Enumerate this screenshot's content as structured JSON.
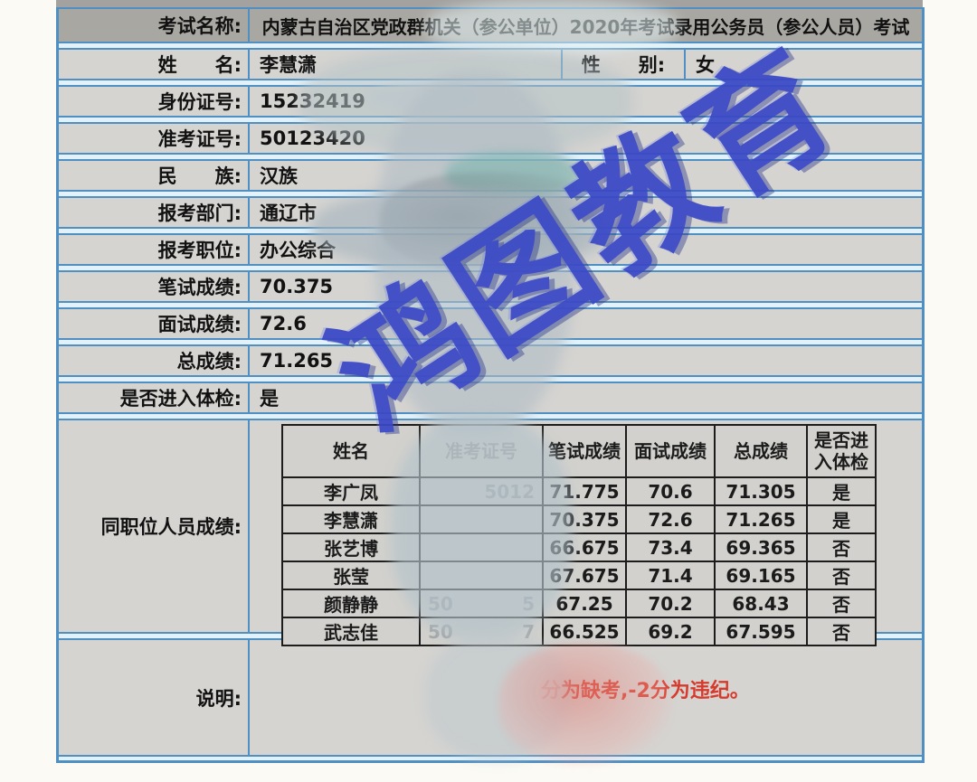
{
  "watermark": {
    "text": "鸿图教育",
    "color": "#3a48c6"
  },
  "colors": {
    "row_border_blue": "#4f8fc1",
    "cell_gray": "#d5d4d1",
    "header_gray": "#a9a7a2",
    "note_red": "#d63a2c",
    "watermark_blue": "#3a48c6"
  },
  "form": {
    "exam_name_label": "考试名称:",
    "exam_name": "内蒙古自治区党政群机关（参公单位）2020年考试录用公务员（参公人员）考试",
    "name_label": "姓　　名:",
    "name": "李慧潇",
    "gender_label": "性　　别:",
    "gender": "女",
    "id_label": "身份证号:",
    "id_value": "15232419",
    "ticket_label": "准考证号:",
    "ticket_value": "50123420",
    "ethnic_label": "民　　族:",
    "ethnic": "汉族",
    "dept_label": "报考部门:",
    "dept": "通辽市",
    "position_label": "报考职位:",
    "position": "办公综合",
    "written_label": "笔试成绩:",
    "written": "70.375",
    "interview_label": "面试成绩:",
    "interview": "72.6",
    "total_label": "总成绩:",
    "total": "71.265",
    "medical_label": "是否进入体检:",
    "medical": "是",
    "peers_label": "同职位人员成绩:",
    "note_label": "说明:",
    "note_faint": "分",
    "note_text": "为缺考,-2分为违纪。"
  },
  "peer_table": {
    "headers": {
      "name": "姓名",
      "ticket": "准考证号",
      "written": "笔试成绩",
      "interview": "面试成绩",
      "total": "总成绩",
      "medical": "是否进入体检"
    },
    "rows": [
      {
        "name": "李广凤",
        "ticket_l": "",
        "ticket_r": "5012",
        "written": "71.775",
        "interview": "70.6",
        "total": "71.305",
        "medical": "是"
      },
      {
        "name": "李慧潇",
        "ticket_l": "",
        "ticket_r": "",
        "written": "70.375",
        "interview": "72.6",
        "total": "71.265",
        "medical": "是"
      },
      {
        "name": "张艺博",
        "ticket_l": "",
        "ticket_r": "",
        "written": "66.675",
        "interview": "73.4",
        "total": "69.365",
        "medical": "否"
      },
      {
        "name": "张莹",
        "ticket_l": "",
        "ticket_r": "",
        "written": "67.675",
        "interview": "71.4",
        "total": "69.165",
        "medical": "否"
      },
      {
        "name": "颜静静",
        "ticket_l": "50",
        "ticket_r": "5",
        "written": "67.25",
        "interview": "70.2",
        "total": "68.43",
        "medical": "否"
      },
      {
        "name": "武志佳",
        "ticket_l": "50",
        "ticket_r": "7",
        "written": "66.525",
        "interview": "69.2",
        "total": "67.595",
        "medical": "否"
      }
    ]
  }
}
